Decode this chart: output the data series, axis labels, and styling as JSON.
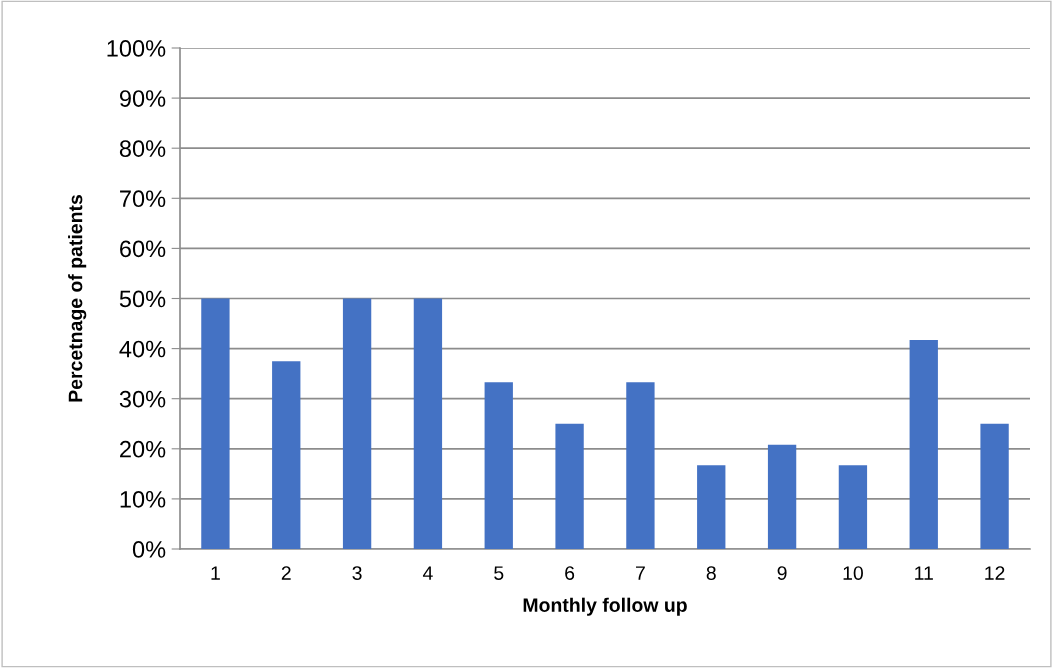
{
  "chart_data": {
    "type": "bar",
    "xlabel": "Monthly follow up",
    "ylabel": "Percetnage of patients",
    "categories": [
      "1",
      "2",
      "3",
      "4",
      "5",
      "6",
      "7",
      "8",
      "9",
      "10",
      "11",
      "12"
    ],
    "values": [
      50,
      37.5,
      50,
      50,
      33.3,
      25,
      33.3,
      16.7,
      20.8,
      16.7,
      41.7,
      25
    ],
    "color": "#4472c4",
    "ylim": [
      0,
      100
    ],
    "yticks": [
      {
        "value": 0,
        "label": "0%"
      },
      {
        "value": 10,
        "label": "10%"
      },
      {
        "value": 20,
        "label": "20%"
      },
      {
        "value": 30,
        "label": "30%"
      },
      {
        "value": 40,
        "label": "40%"
      },
      {
        "value": 50,
        "label": "50%"
      },
      {
        "value": 60,
        "label": "60%"
      },
      {
        "value": 70,
        "label": "70%"
      },
      {
        "value": 80,
        "label": "80%"
      },
      {
        "value": 90,
        "label": "90%"
      },
      {
        "value": 100,
        "label": "100%"
      }
    ],
    "grid": "y",
    "legend": false
  }
}
